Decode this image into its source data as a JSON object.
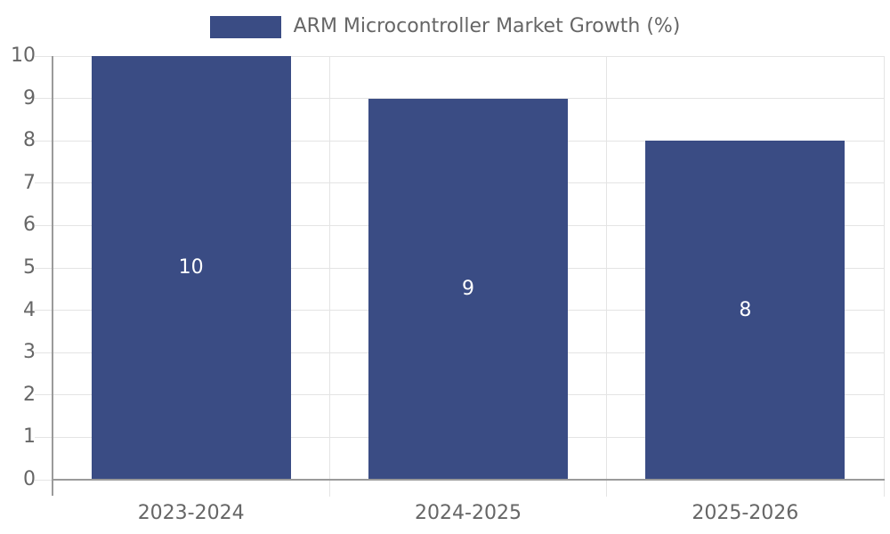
{
  "chart_data": {
    "type": "bar",
    "title": "ARM Microcontroller Market Growth (%)",
    "legend": [
      "ARM Microcontroller Market Growth (%)"
    ],
    "legend_position": "top-center",
    "categories": [
      "2023-2024",
      "2024-2025",
      "2025-2026"
    ],
    "values": [
      10,
      9,
      8
    ],
    "value_labels": [
      "10",
      "9",
      "8"
    ],
    "xlabel": "",
    "ylabel": "",
    "ylim": [
      0,
      10
    ],
    "yticks": [
      0,
      1,
      2,
      3,
      4,
      5,
      6,
      7,
      8,
      9,
      10
    ],
    "grid": true,
    "value_labels_inside_bars": true
  },
  "colors": {
    "bar": "#3A4C84",
    "grid": "#E4E4E4",
    "axis": "#9A9A9A",
    "tick_text": "#666666",
    "legend_text": "#666666",
    "value_label": "#FFFFFF",
    "background": "#FFFFFF"
  }
}
